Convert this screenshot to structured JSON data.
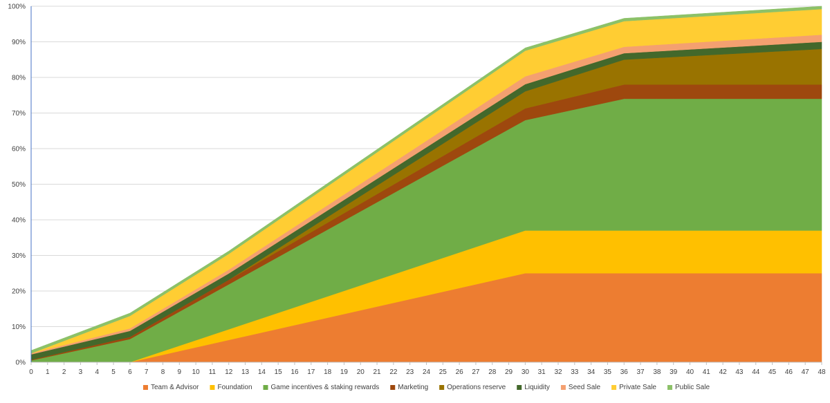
{
  "chart_data": {
    "type": "area",
    "stacked": true,
    "title": "",
    "xlabel": "",
    "ylabel": "",
    "ylim": [
      0,
      100
    ],
    "yticks": [
      "0%",
      "10%",
      "20%",
      "30%",
      "40%",
      "50%",
      "60%",
      "70%",
      "80%",
      "90%",
      "100%"
    ],
    "x": [
      0,
      1,
      2,
      3,
      4,
      5,
      6,
      7,
      8,
      9,
      10,
      11,
      12,
      13,
      14,
      15,
      16,
      17,
      18,
      19,
      20,
      21,
      22,
      23,
      24,
      25,
      26,
      27,
      28,
      29,
      30,
      31,
      32,
      33,
      34,
      35,
      36,
      37,
      38,
      39,
      40,
      41,
      42,
      43,
      44,
      45,
      46,
      47,
      48
    ],
    "grid": "horizontal",
    "legend_position": "bottom",
    "series": [
      {
        "name": "Team & Advisor",
        "color": "#ED7D31",
        "points": [
          [
            0,
            0
          ],
          [
            6,
            0
          ],
          [
            30,
            25
          ],
          [
            48,
            25
          ]
        ]
      },
      {
        "name": "Foundation",
        "color": "#FFC000",
        "points": [
          [
            0,
            0
          ],
          [
            6,
            0
          ],
          [
            30,
            12
          ],
          [
            48,
            12
          ]
        ]
      },
      {
        "name": "Game incentives & staking rewards",
        "color": "#70AD47",
        "points": [
          [
            0,
            0.5
          ],
          [
            6,
            6.5
          ],
          [
            30,
            31
          ],
          [
            36,
            37
          ],
          [
            48,
            37
          ]
        ]
      },
      {
        "name": "Marketing",
        "color": "#9E480E",
        "points": [
          [
            0,
            0.2
          ],
          [
            6,
            0.6
          ],
          [
            30,
            3.3
          ],
          [
            36,
            4
          ],
          [
            48,
            4
          ]
        ]
      },
      {
        "name": "Operations reserve",
        "color": "#997300",
        "points": [
          [
            0,
            0
          ],
          [
            12,
            0
          ],
          [
            30,
            4.8
          ],
          [
            36,
            7
          ],
          [
            48,
            10
          ]
        ]
      },
      {
        "name": "Liquidity",
        "color": "#43682B",
        "points": [
          [
            0,
            1.5
          ],
          [
            6,
            1.7
          ],
          [
            30,
            2
          ],
          [
            36,
            1.8
          ],
          [
            48,
            2
          ]
        ]
      },
      {
        "name": "Seed Sale",
        "color": "#F4A070",
        "points": [
          [
            0,
            0.3
          ],
          [
            6,
            0.7
          ],
          [
            30,
            2.2
          ],
          [
            36,
            1.8
          ],
          [
            48,
            2
          ]
        ]
      },
      {
        "name": "Private Sale",
        "color": "#FFCD33",
        "points": [
          [
            0,
            0
          ],
          [
            6,
            3.5
          ],
          [
            30,
            7.2
          ],
          [
            36,
            7.2
          ],
          [
            48,
            7.2
          ]
        ]
      },
      {
        "name": "Public Sale",
        "color": "#8CC168",
        "points": [
          [
            0,
            0.8
          ],
          [
            6,
            0.8
          ],
          [
            30,
            0.8
          ],
          [
            36,
            0.8
          ],
          [
            48,
            0.8
          ]
        ]
      }
    ]
  }
}
